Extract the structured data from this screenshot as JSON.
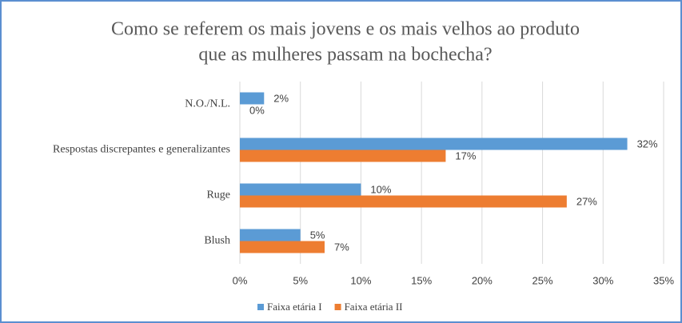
{
  "chart_data": {
    "type": "barh",
    "title": [
      "Como se referem os mais jovens e os mais velhos  ao produto",
      "que as mulheres passam na bochecha?"
    ],
    "categories": [
      "N.O./N.L.",
      "Respostas discrepantes e generalizantes",
      "Ruge",
      "Blush"
    ],
    "series": [
      {
        "name": "Faixa etária I",
        "color": "#5b9bd5",
        "values": [
          2,
          32,
          10,
          5
        ],
        "value_labels": [
          "2%",
          "32%",
          "10%",
          "5%"
        ]
      },
      {
        "name": "Faixa etária II",
        "color": "#ed7d31",
        "values": [
          0,
          17,
          27,
          7
        ],
        "value_labels": [
          "0%",
          "17%",
          "27%",
          "7%"
        ]
      }
    ],
    "xlim": [
      0,
      35
    ],
    "xticks": [
      {
        "value": 0,
        "label": "0%"
      },
      {
        "value": 5,
        "label": "5%"
      },
      {
        "value": 10,
        "label": "10%"
      },
      {
        "value": 15,
        "label": "15%"
      },
      {
        "value": 20,
        "label": "20%"
      },
      {
        "value": 25,
        "label": "25%"
      },
      {
        "value": 30,
        "label": "30%"
      },
      {
        "value": 35,
        "label": "35%"
      }
    ],
    "grid": true,
    "legend": "bottom"
  }
}
